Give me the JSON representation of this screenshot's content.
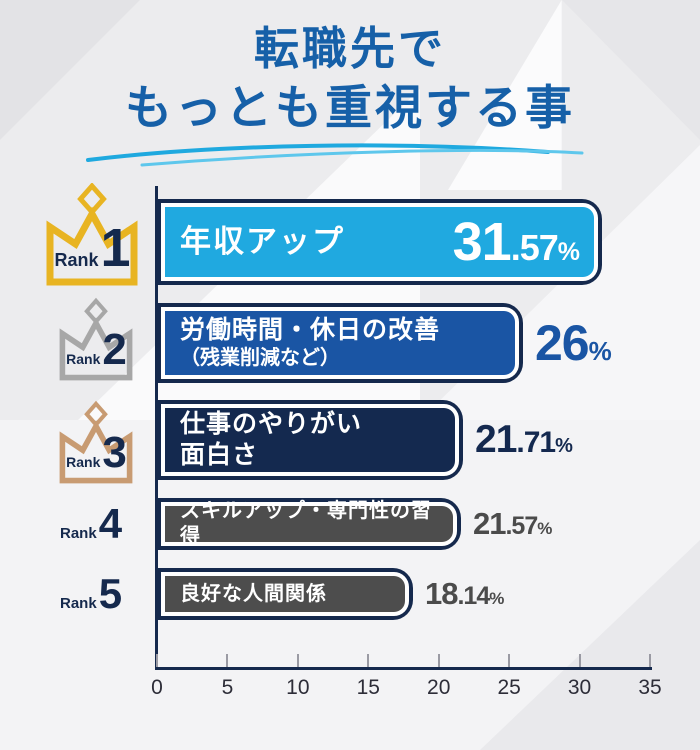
{
  "title": {
    "line1": "転職先で",
    "line2": "もっとも重視する事"
  },
  "colors": {
    "title_blue": "#1660a8",
    "navy": "#15294d",
    "cyan": "#20a9e0",
    "royal": "#1a55a4",
    "dark_gray": "#4d4d4d",
    "gold": "#e8b422",
    "silver": "#a7a7a7",
    "bronze": "#c89b72",
    "swoosh_main": "#1fa9df",
    "swoosh_light": "#5ec7ec",
    "tick_gray": "#9a9aa3",
    "value_gray": "#4b4b4b"
  },
  "rows": [
    {
      "rank_label": "Rank",
      "rank": "1",
      "crown": "gold",
      "label_lines": [
        "年収アップ"
      ],
      "value": 31.57,
      "value_inside": true,
      "fill": "#20a9e0",
      "value_color": "#ffffff"
    },
    {
      "rank_label": "Rank",
      "rank": "2",
      "crown": "silver",
      "label_lines": [
        "労働時間・休日の改善",
        "（残業削減など）"
      ],
      "value": 26,
      "value_inside": false,
      "fill": "#1a55a4",
      "value_color": "#1a55a4"
    },
    {
      "rank_label": "Rank",
      "rank": "3",
      "crown": "bronze",
      "label_lines": [
        "仕事のやりがい",
        "面白さ"
      ],
      "value": 21.71,
      "value_inside": false,
      "fill": "#14294f",
      "value_color": "#14294f"
    },
    {
      "rank_label": "Rank",
      "rank": "4",
      "crown": null,
      "label_lines": [
        "スキルアップ・専門性の習得"
      ],
      "value": 21.57,
      "value_inside": false,
      "fill": "#4d4d4d",
      "value_color": "#4b4b4b"
    },
    {
      "rank_label": "Rank",
      "rank": "5",
      "crown": null,
      "label_lines": [
        "良好な人間関係"
      ],
      "value": 18.14,
      "value_inside": false,
      "fill": "#4d4d4d",
      "value_color": "#4b4b4b"
    }
  ],
  "axis": {
    "ticks": [
      "0",
      "5",
      "10",
      "15",
      "20",
      "25",
      "30",
      "35"
    ],
    "max": 35
  },
  "chart_data": {
    "type": "bar",
    "orientation": "horizontal",
    "title": "転職先でもっとも重視する事",
    "categories": [
      "年収アップ",
      "労働時間・休日の改善（残業削減など）",
      "仕事のやりがい 面白さ",
      "スキルアップ・専門性の習得",
      "良好な人間関係"
    ],
    "values": [
      31.57,
      26,
      21.71,
      21.57,
      18.14
    ],
    "ranks": [
      1,
      2,
      3,
      4,
      5
    ],
    "value_suffix": "%",
    "xlabel": "",
    "ylabel": "",
    "xlim": [
      0,
      35
    ],
    "xticks": [
      0,
      5,
      10,
      15,
      20,
      25,
      30,
      35
    ],
    "grid": false,
    "legend": false
  }
}
